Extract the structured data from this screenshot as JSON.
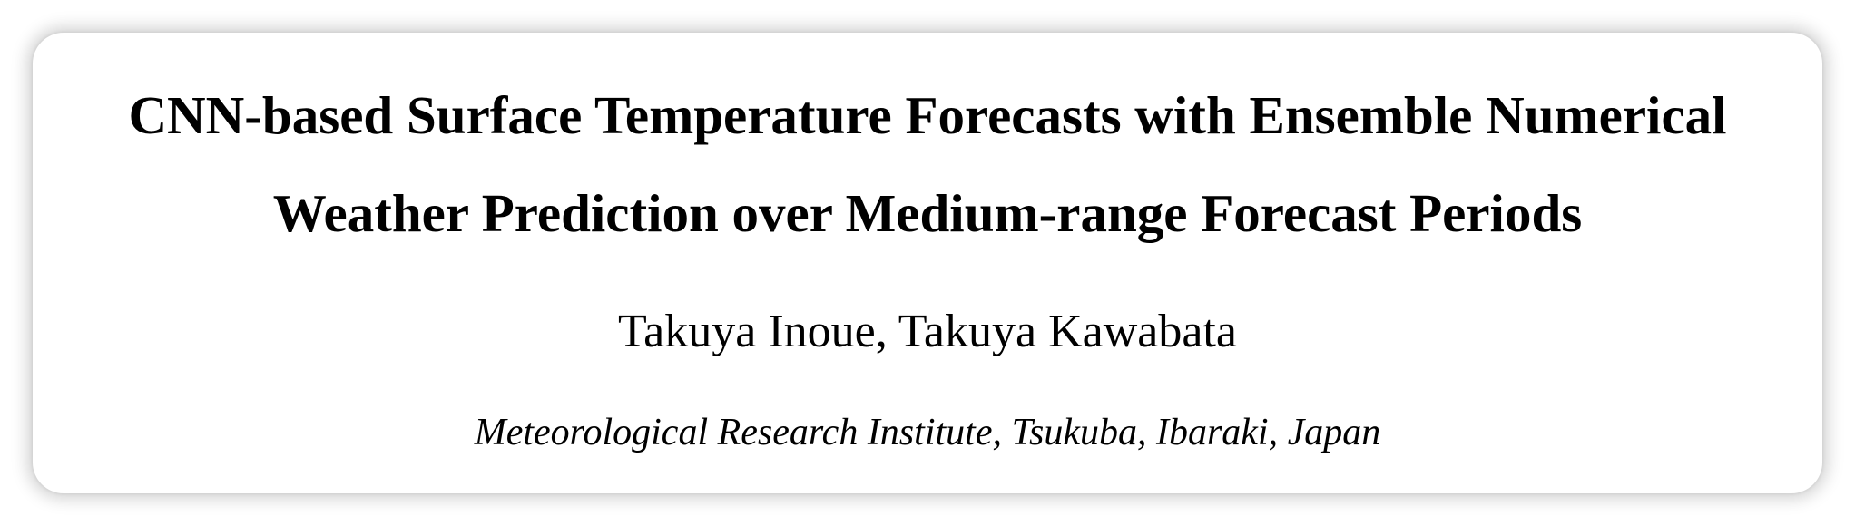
{
  "paper": {
    "title_line1": "CNN-based Surface Temperature Forecasts with Ensemble Numerical",
    "title_line2": "Weather Prediction over Medium-range Forecast Periods",
    "authors": "Takuya Inoue, Takuya Kawabata",
    "affiliation": "Meteorological Research Institute, Tsukuba, Ibaraki, Japan"
  }
}
